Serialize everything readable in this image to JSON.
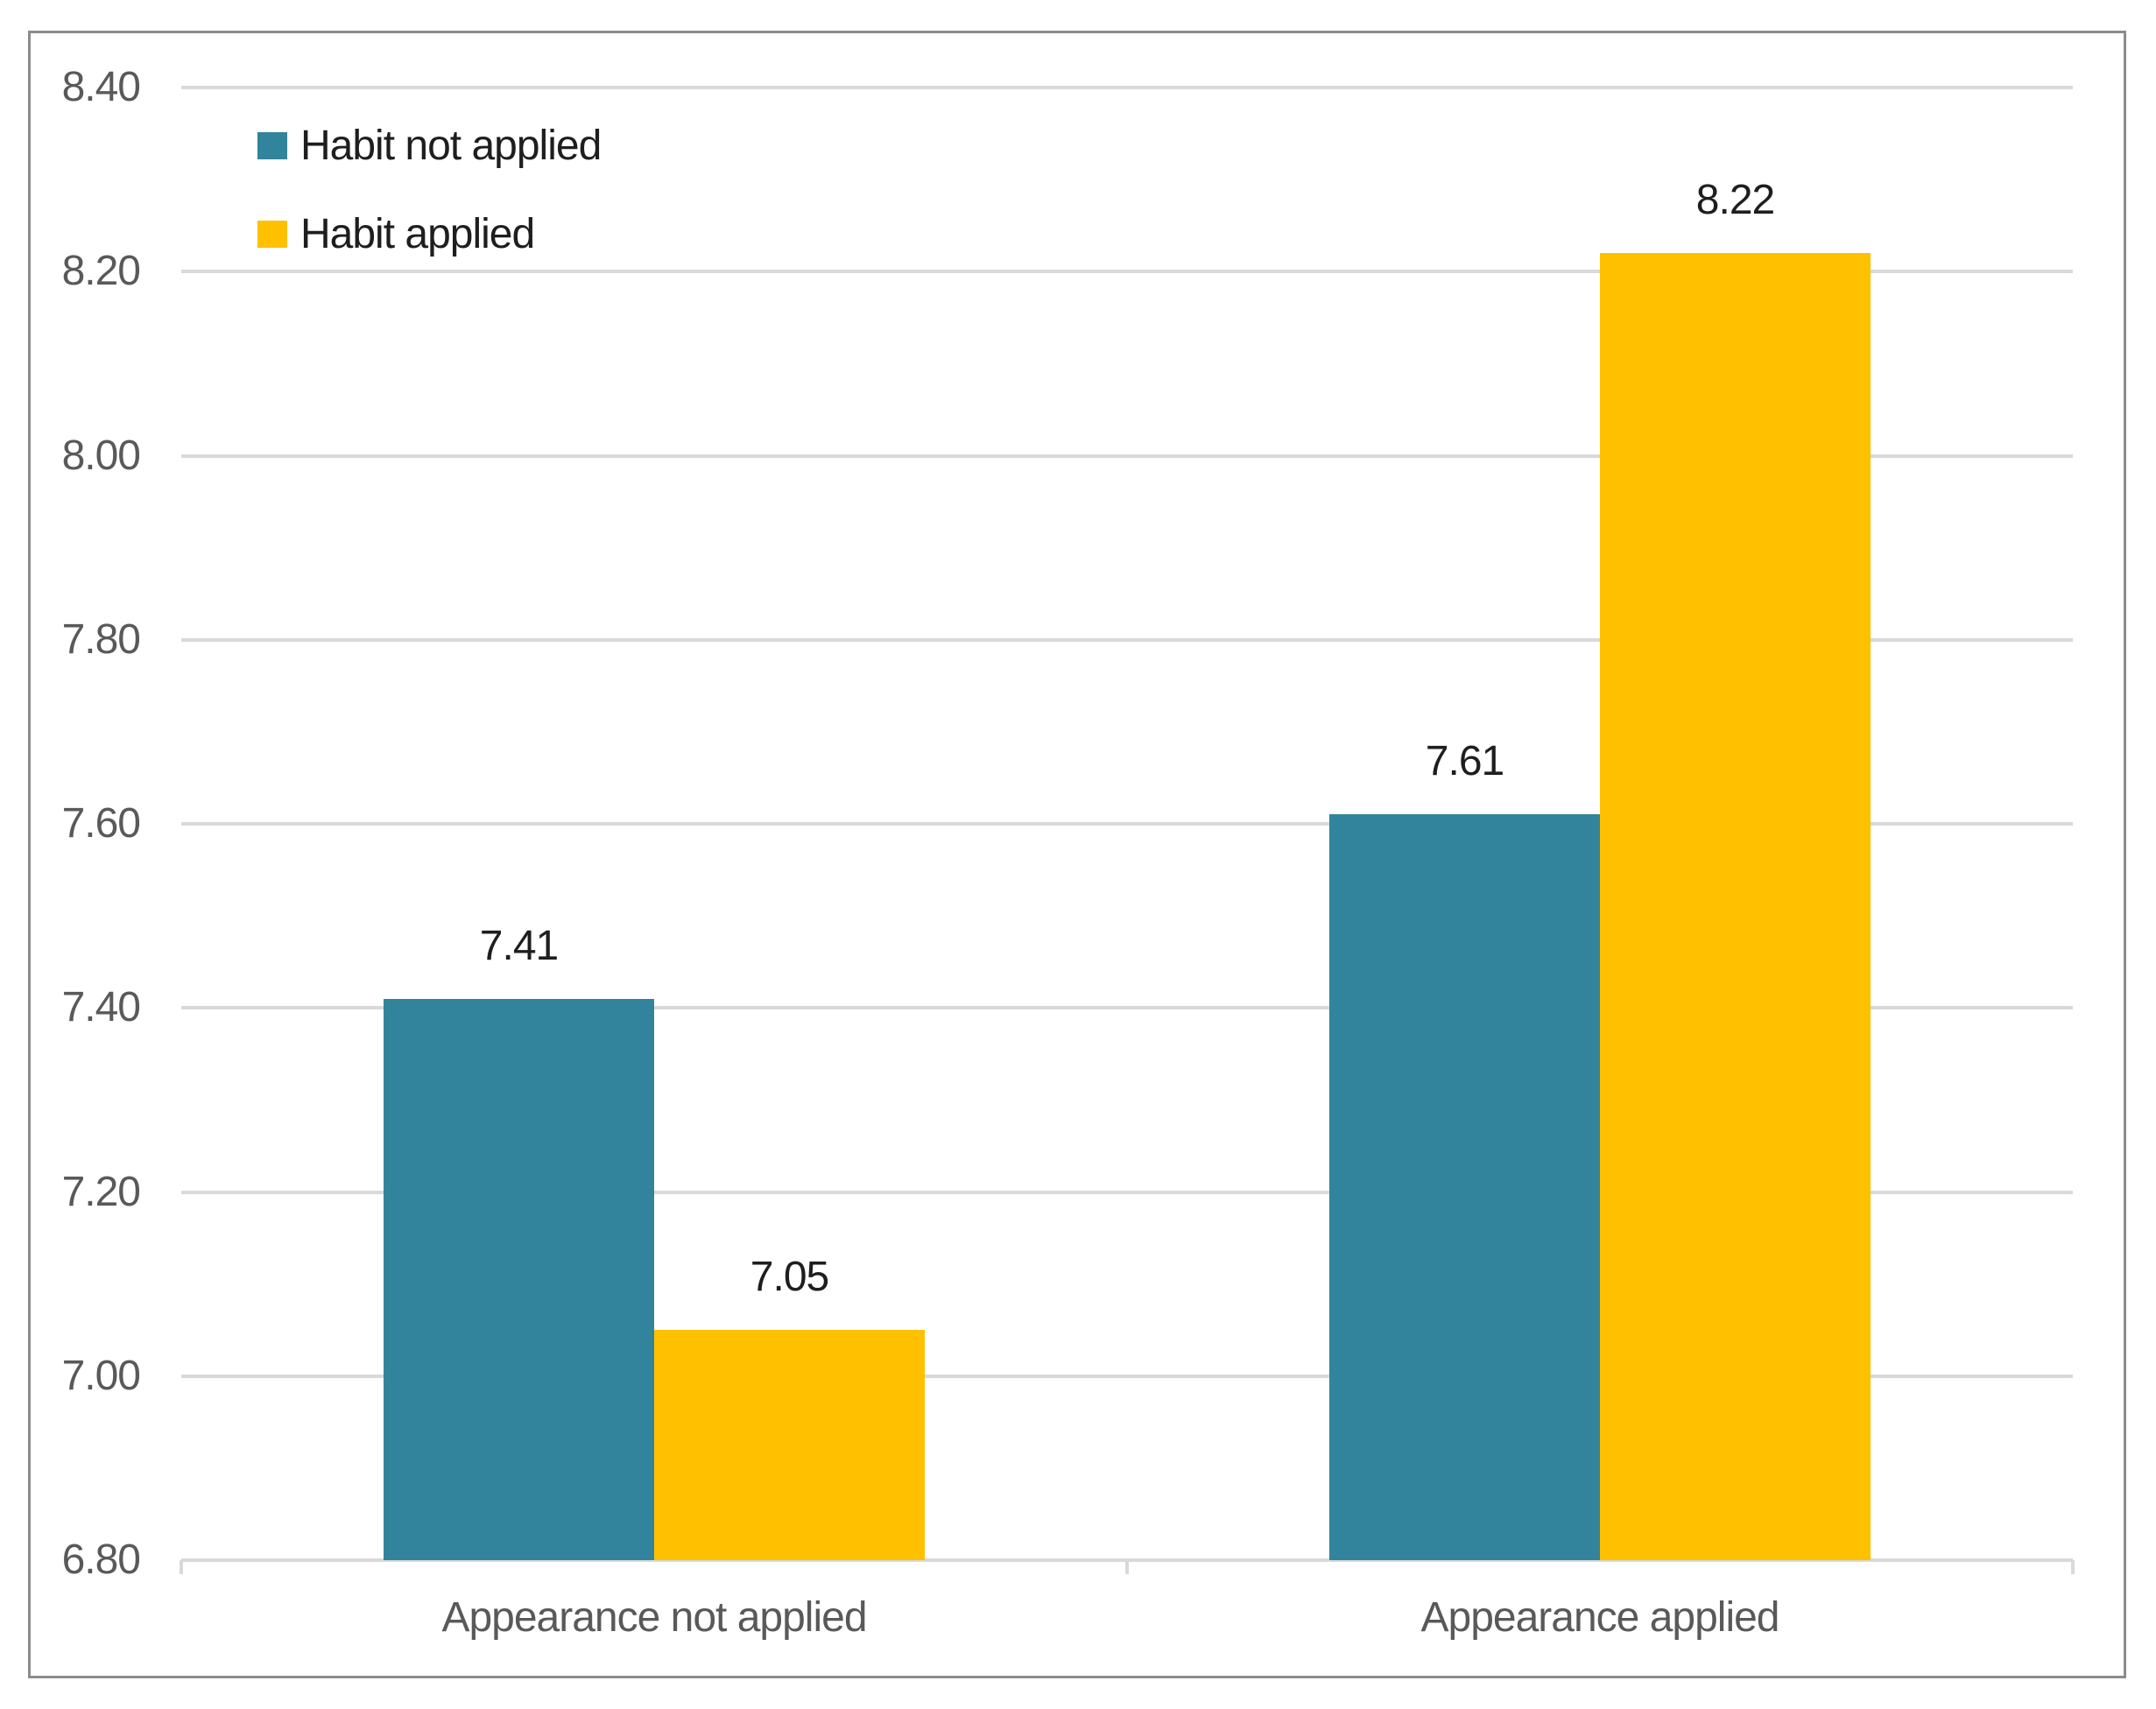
{
  "chart_data": {
    "type": "bar",
    "title": "",
    "xlabel": "",
    "ylabel": "",
    "categories": [
      "Appearance not applied",
      "Appearance applied"
    ],
    "series": [
      {
        "name": "Habit not applied",
        "color": "#31849B",
        "values": [
          7.41,
          7.61
        ]
      },
      {
        "name": "Habit applied",
        "color": "#FFC000",
        "values": [
          7.05,
          8.22
        ]
      }
    ],
    "data_labels": [
      "7.41",
      "7.05",
      "7.61",
      "8.22"
    ],
    "ylim": [
      6.8,
      8.4
    ],
    "ytick_interval": 0.2,
    "ytick_labels": [
      "8.40",
      "8.20",
      "8.00",
      "7.80",
      "7.60",
      "7.40",
      "7.20",
      "7.00",
      "6.80"
    ],
    "grid": true,
    "legend_position": "top-left"
  },
  "colors": {
    "background": "#FFFFFF",
    "frame_border": "#8C8C8C",
    "gridline": "#D9D9D9",
    "axis_text": "#595959",
    "label_text": "#1E1E1E",
    "series_teal": "#31849B",
    "series_gold": "#FFC000"
  }
}
